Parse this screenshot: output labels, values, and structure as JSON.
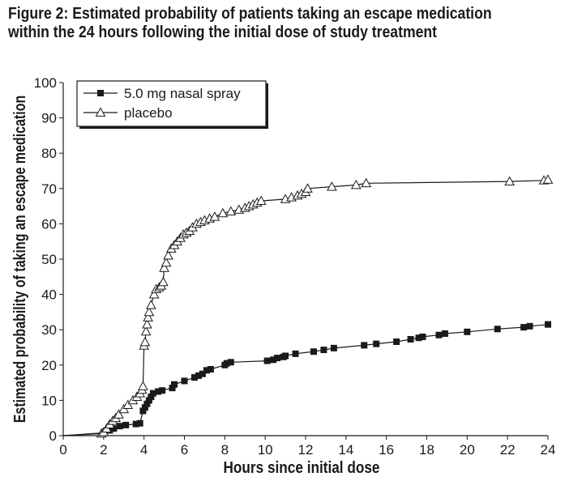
{
  "title_lines": [
    "Figure 2: Estimated probability of patients taking an escape medication",
    "within the 24 hours following the initial dose of study treatment"
  ],
  "chart_data": {
    "type": "line",
    "title": "Figure 2: Estimated probability of patients taking an escape medication within the 24 hours following the initial dose of study treatment",
    "xlabel": "Hours since initial dose",
    "ylabel": "Estimated probability of taking an escape medication",
    "xlim": [
      0,
      24
    ],
    "ylim": [
      0,
      100
    ],
    "xticks": [
      0,
      2,
      4,
      6,
      8,
      10,
      12,
      14,
      16,
      18,
      20,
      22,
      24
    ],
    "yticks": [
      0,
      10,
      20,
      30,
      40,
      50,
      60,
      70,
      80,
      90,
      100
    ],
    "grid": false,
    "legend": "top-left",
    "series": [
      {
        "name": "5.0 mg nasal spray",
        "marker": "filled-square",
        "color": "#1a1a1a",
        "x": [
          0,
          2.0,
          2.3,
          2.5,
          2.8,
          3.1,
          3.6,
          3.8,
          3.95,
          4.05,
          4.15,
          4.25,
          4.35,
          4.45,
          4.7,
          4.9,
          5.4,
          5.5,
          6.0,
          6.5,
          6.7,
          6.9,
          7.1,
          7.3,
          8.0,
          8.1,
          8.3,
          10.1,
          10.4,
          10.6,
          10.9,
          11.0,
          11.5,
          12.4,
          12.9,
          13.4,
          14.9,
          15.5,
          16.5,
          17.2,
          17.6,
          17.8,
          18.6,
          18.9,
          20.0,
          21.5,
          22.8,
          23.1,
          24.0
        ],
        "y": [
          0,
          0.8,
          1.5,
          2.0,
          2.7,
          3.0,
          3.3,
          3.5,
          7.0,
          8.0,
          9.0,
          10.0,
          11.0,
          12.0,
          12.5,
          12.8,
          13.5,
          14.5,
          15.5,
          16.5,
          17.0,
          17.5,
          18.5,
          18.8,
          20.0,
          20.5,
          20.8,
          21.2,
          21.5,
          22.0,
          22.3,
          22.6,
          23.2,
          23.8,
          24.3,
          24.8,
          25.6,
          26.0,
          26.6,
          27.3,
          27.7,
          28.0,
          28.5,
          28.9,
          29.4,
          30.2,
          30.7,
          31.0,
          31.5
        ]
      },
      {
        "name": "placebo",
        "marker": "open-triangle",
        "color": "#1a1a1a",
        "x": [
          0,
          1.9,
          2.0,
          2.15,
          2.3,
          2.45,
          2.6,
          2.75,
          3.0,
          3.2,
          3.45,
          3.65,
          3.8,
          3.9,
          3.95,
          4.0,
          4.05,
          4.1,
          4.15,
          4.2,
          4.25,
          4.35,
          4.5,
          4.6,
          4.75,
          4.85,
          4.95,
          5.0,
          5.1,
          5.2,
          5.35,
          5.5,
          5.65,
          5.8,
          5.95,
          6.1,
          6.25,
          6.4,
          6.6,
          6.8,
          7.0,
          7.25,
          7.5,
          7.9,
          8.3,
          8.7,
          9.0,
          9.2,
          9.4,
          9.6,
          9.8,
          11.0,
          11.3,
          11.6,
          11.8,
          12.0,
          12.1,
          13.3,
          14.5,
          15.0,
          22.1,
          23.8,
          24.0
        ],
        "y": [
          0,
          0.6,
          1.0,
          2.0,
          3.2,
          4.2,
          5.0,
          6.0,
          7.5,
          8.7,
          10.0,
          11.0,
          12.0,
          13.0,
          14.0,
          25.5,
          26.5,
          29.5,
          31.5,
          33.5,
          35.0,
          37.0,
          40.0,
          41.5,
          42.0,
          42.5,
          43.5,
          47.5,
          49.0,
          51.0,
          53.0,
          54.0,
          55.0,
          56.0,
          57.0,
          57.5,
          58.0,
          59.0,
          60.0,
          60.5,
          61.0,
          61.5,
          62.0,
          63.0,
          63.5,
          64.0,
          64.5,
          65.0,
          65.5,
          66.0,
          66.5,
          67.0,
          67.5,
          68.0,
          68.5,
          69.0,
          70.0,
          70.5,
          71.0,
          71.5,
          72.0,
          72.3,
          72.5
        ]
      }
    ]
  }
}
